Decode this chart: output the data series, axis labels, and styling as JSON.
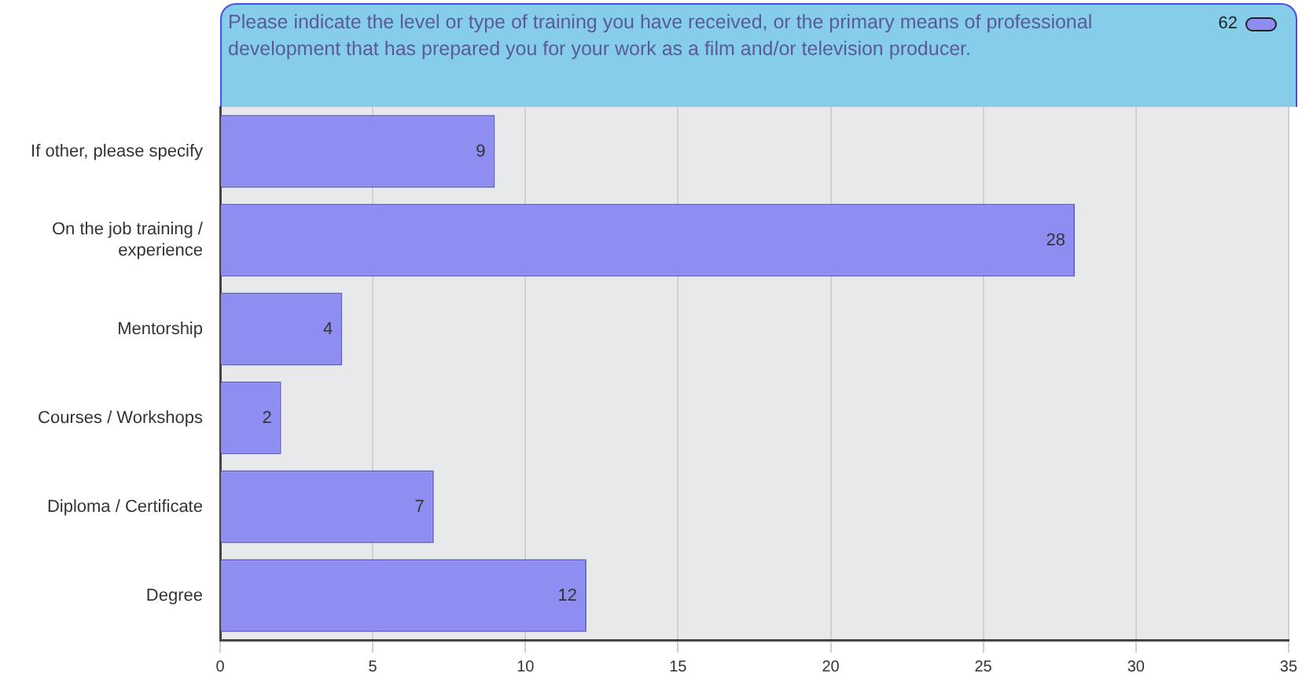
{
  "chart_data": {
    "type": "bar",
    "orientation": "horizontal",
    "title": "Please indicate the level or type of training you have received, or the primary means of professional development that has prepared you for your work as a film and/or television producer.",
    "categories": [
      "If other, please specify",
      "On the job training / experience",
      "Mentorship",
      "Courses / Workshops",
      "Diploma / Certificate",
      "Degree"
    ],
    "series": [
      {
        "name": "62",
        "color": "#8e8ef2",
        "values": [
          9,
          28,
          4,
          2,
          7,
          12
        ]
      }
    ],
    "xlim": [
      0,
      35
    ],
    "xticks": [
      0,
      5,
      10,
      15,
      20,
      25,
      30,
      35
    ],
    "grid": "x",
    "legend": "top right",
    "data_labels": true
  }
}
